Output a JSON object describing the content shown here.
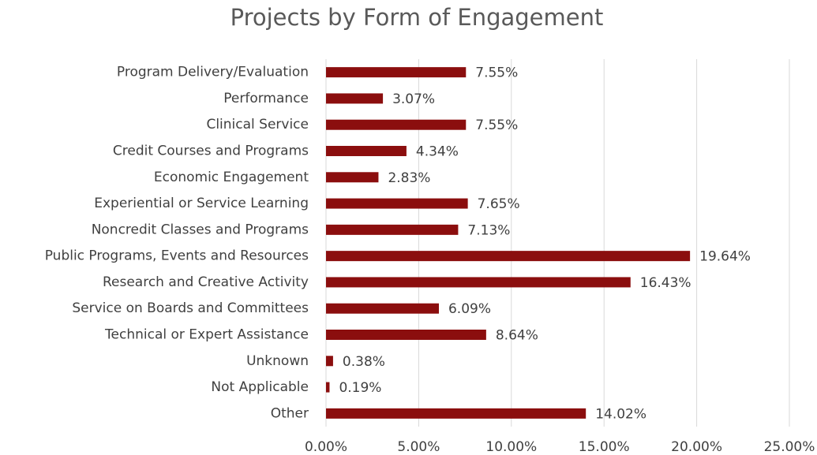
{
  "chart_data": {
    "type": "hbar",
    "title": "Projects by Form of Engagement",
    "categories": [
      "Program Delivery/Evaluation",
      "Performance",
      "Clinical Service",
      "Credit Courses and Programs",
      "Economic Engagement",
      "Experiential or Service Learning",
      "Noncredit Classes and Programs",
      "Public Programs, Events and Resources",
      "Research and Creative Activity",
      "Service on Boards and Committees",
      "Technical or Expert Assistance",
      "Unknown",
      "Not Applicable",
      "Other"
    ],
    "values": [
      7.55,
      3.07,
      7.55,
      4.34,
      2.83,
      7.65,
      7.13,
      19.64,
      16.43,
      6.09,
      8.64,
      0.38,
      0.19,
      14.02
    ],
    "value_labels": [
      "7.55%",
      "3.07%",
      "7.55%",
      "4.34%",
      "2.83%",
      "7.65%",
      "7.13%",
      "19.64%",
      "16.43%",
      "6.09%",
      "8.64%",
      "0.38%",
      "0.19%",
      "14.02%"
    ],
    "color": "#8b0e0e",
    "xlim": [
      0,
      25
    ],
    "xticks": [
      {
        "value": 0,
        "label": "0.00%"
      },
      {
        "value": 5,
        "label": "5.00%"
      },
      {
        "value": 10,
        "label": "10.00%"
      },
      {
        "value": 15,
        "label": "15.00%"
      },
      {
        "value": 20,
        "label": "20.00%"
      },
      {
        "value": 25,
        "label": "25.00%"
      }
    ],
    "grid": true
  }
}
